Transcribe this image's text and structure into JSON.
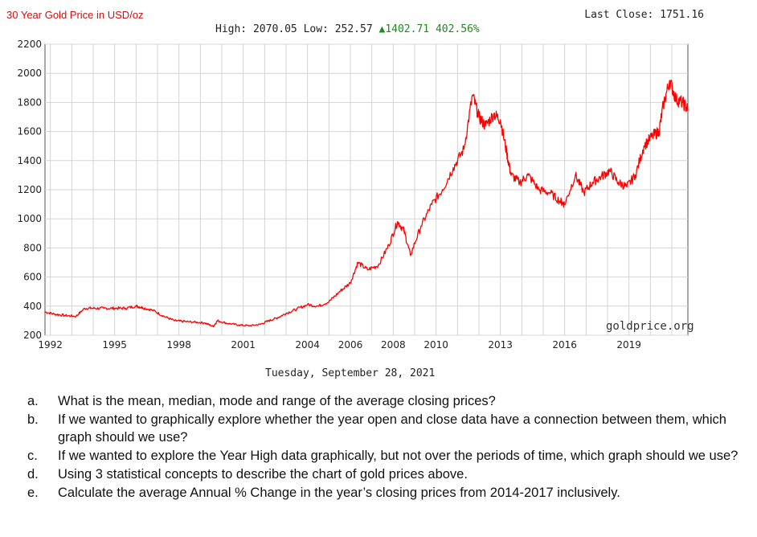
{
  "header": {
    "title": "30 Year Gold Price in USD/oz",
    "last_close": "Last Close: 1751.16",
    "high_low": "High: 2070.05 Low: 252.57",
    "change_arrow": "▲",
    "change": "1402.71 402.56%"
  },
  "watermark": "goldprice.org",
  "date_caption": "Tuesday, September 28, 2021",
  "colors": {
    "line": "#ff0000",
    "title": "#d01010",
    "change": "#1f8a1f",
    "grid": "#d4d4d4"
  },
  "chart_data": {
    "type": "line",
    "title": "30 Year Gold Price in USD/oz",
    "xlabel": "",
    "ylabel": "",
    "xlim": [
      1991.75,
      2021.75
    ],
    "ylim": [
      200,
      2200
    ],
    "y_ticks": [
      200,
      400,
      600,
      800,
      1000,
      1200,
      1400,
      1600,
      1800,
      2000,
      2200
    ],
    "x_tick_labels": [
      {
        "label": "1992",
        "x": 1992.0
      },
      {
        "label": "1995",
        "x": 1995.0
      },
      {
        "label": "1998",
        "x": 1998.0
      },
      {
        "label": "2001",
        "x": 2001.0
      },
      {
        "label": "2004",
        "x": 2004.0
      },
      {
        "label": "2006",
        "x": 2006.0
      },
      {
        "label": "2008",
        "x": 2008.0
      },
      {
        "label": "2010",
        "x": 2010.0
      },
      {
        "label": "2013",
        "x": 2013.0
      },
      {
        "label": "2016",
        "x": 2016.0
      },
      {
        "label": "2019",
        "x": 2019.0
      }
    ],
    "grid": true,
    "series": [
      {
        "name": "",
        "x": [
          1991.75,
          1992.2,
          1992.7,
          1993.2,
          1993.6,
          1994.0,
          1994.5,
          1995.0,
          1995.5,
          1996.0,
          1996.3,
          1996.8,
          1997.3,
          1997.8,
          1998.2,
          1998.7,
          1999.2,
          1999.6,
          1999.8,
          2000.3,
          2000.8,
          2001.3,
          2001.8,
          2002.2,
          2002.6,
          2003.0,
          2003.5,
          2004.0,
          2004.5,
          2005.0,
          2005.5,
          2006.0,
          2006.35,
          2006.8,
          2007.3,
          2007.8,
          2008.2,
          2008.5,
          2008.8,
          2009.3,
          2009.8,
          2010.3,
          2010.8,
          2011.3,
          2011.7,
          2012.0,
          2012.3,
          2012.7,
          2013.0,
          2013.3,
          2013.5,
          2013.9,
          2014.3,
          2014.8,
          2015.3,
          2015.8,
          2016.0,
          2016.5,
          2016.9,
          2017.3,
          2017.7,
          2018.1,
          2018.5,
          2018.9,
          2019.3,
          2019.7,
          2020.1,
          2020.4,
          2020.6,
          2020.9,
          2021.2,
          2021.5,
          2021.75
        ],
        "values": [
          360,
          345,
          335,
          330,
          385,
          385,
          385,
          385,
          385,
          400,
          390,
          370,
          330,
          300,
          295,
          290,
          285,
          260,
          300,
          280,
          270,
          265,
          275,
          300,
          320,
          350,
          380,
          410,
          400,
          430,
          500,
          560,
          700,
          650,
          680,
          820,
          980,
          920,
          750,
          950,
          1100,
          1200,
          1350,
          1480,
          1850,
          1700,
          1640,
          1720,
          1680,
          1450,
          1300,
          1250,
          1300,
          1200,
          1180,
          1120,
          1100,
          1300,
          1180,
          1250,
          1290,
          1330,
          1250,
          1220,
          1300,
          1500,
          1570,
          1600,
          1780,
          1950,
          1820,
          1800,
          1751
        ]
      }
    ]
  },
  "questions": [
    {
      "letter": "a.",
      "text": "What is the mean, median, mode and range of the average closing prices?"
    },
    {
      "letter": "b.",
      "text": "If we wanted to graphically explore whether the year open and close data have a connection between them, which graph should we use?"
    },
    {
      "letter": "c.",
      "text": "If we wanted to explore the Year High data graphically, but not over the periods of time, which graph should we use?"
    },
    {
      "letter": "d.",
      "text": "Using 3 statistical concepts to describe the chart of gold prices above."
    },
    {
      "letter": "e.",
      "text": "Calculate the average Annual % Change in the year’s closing prices from 2014-2017 inclusively."
    }
  ]
}
